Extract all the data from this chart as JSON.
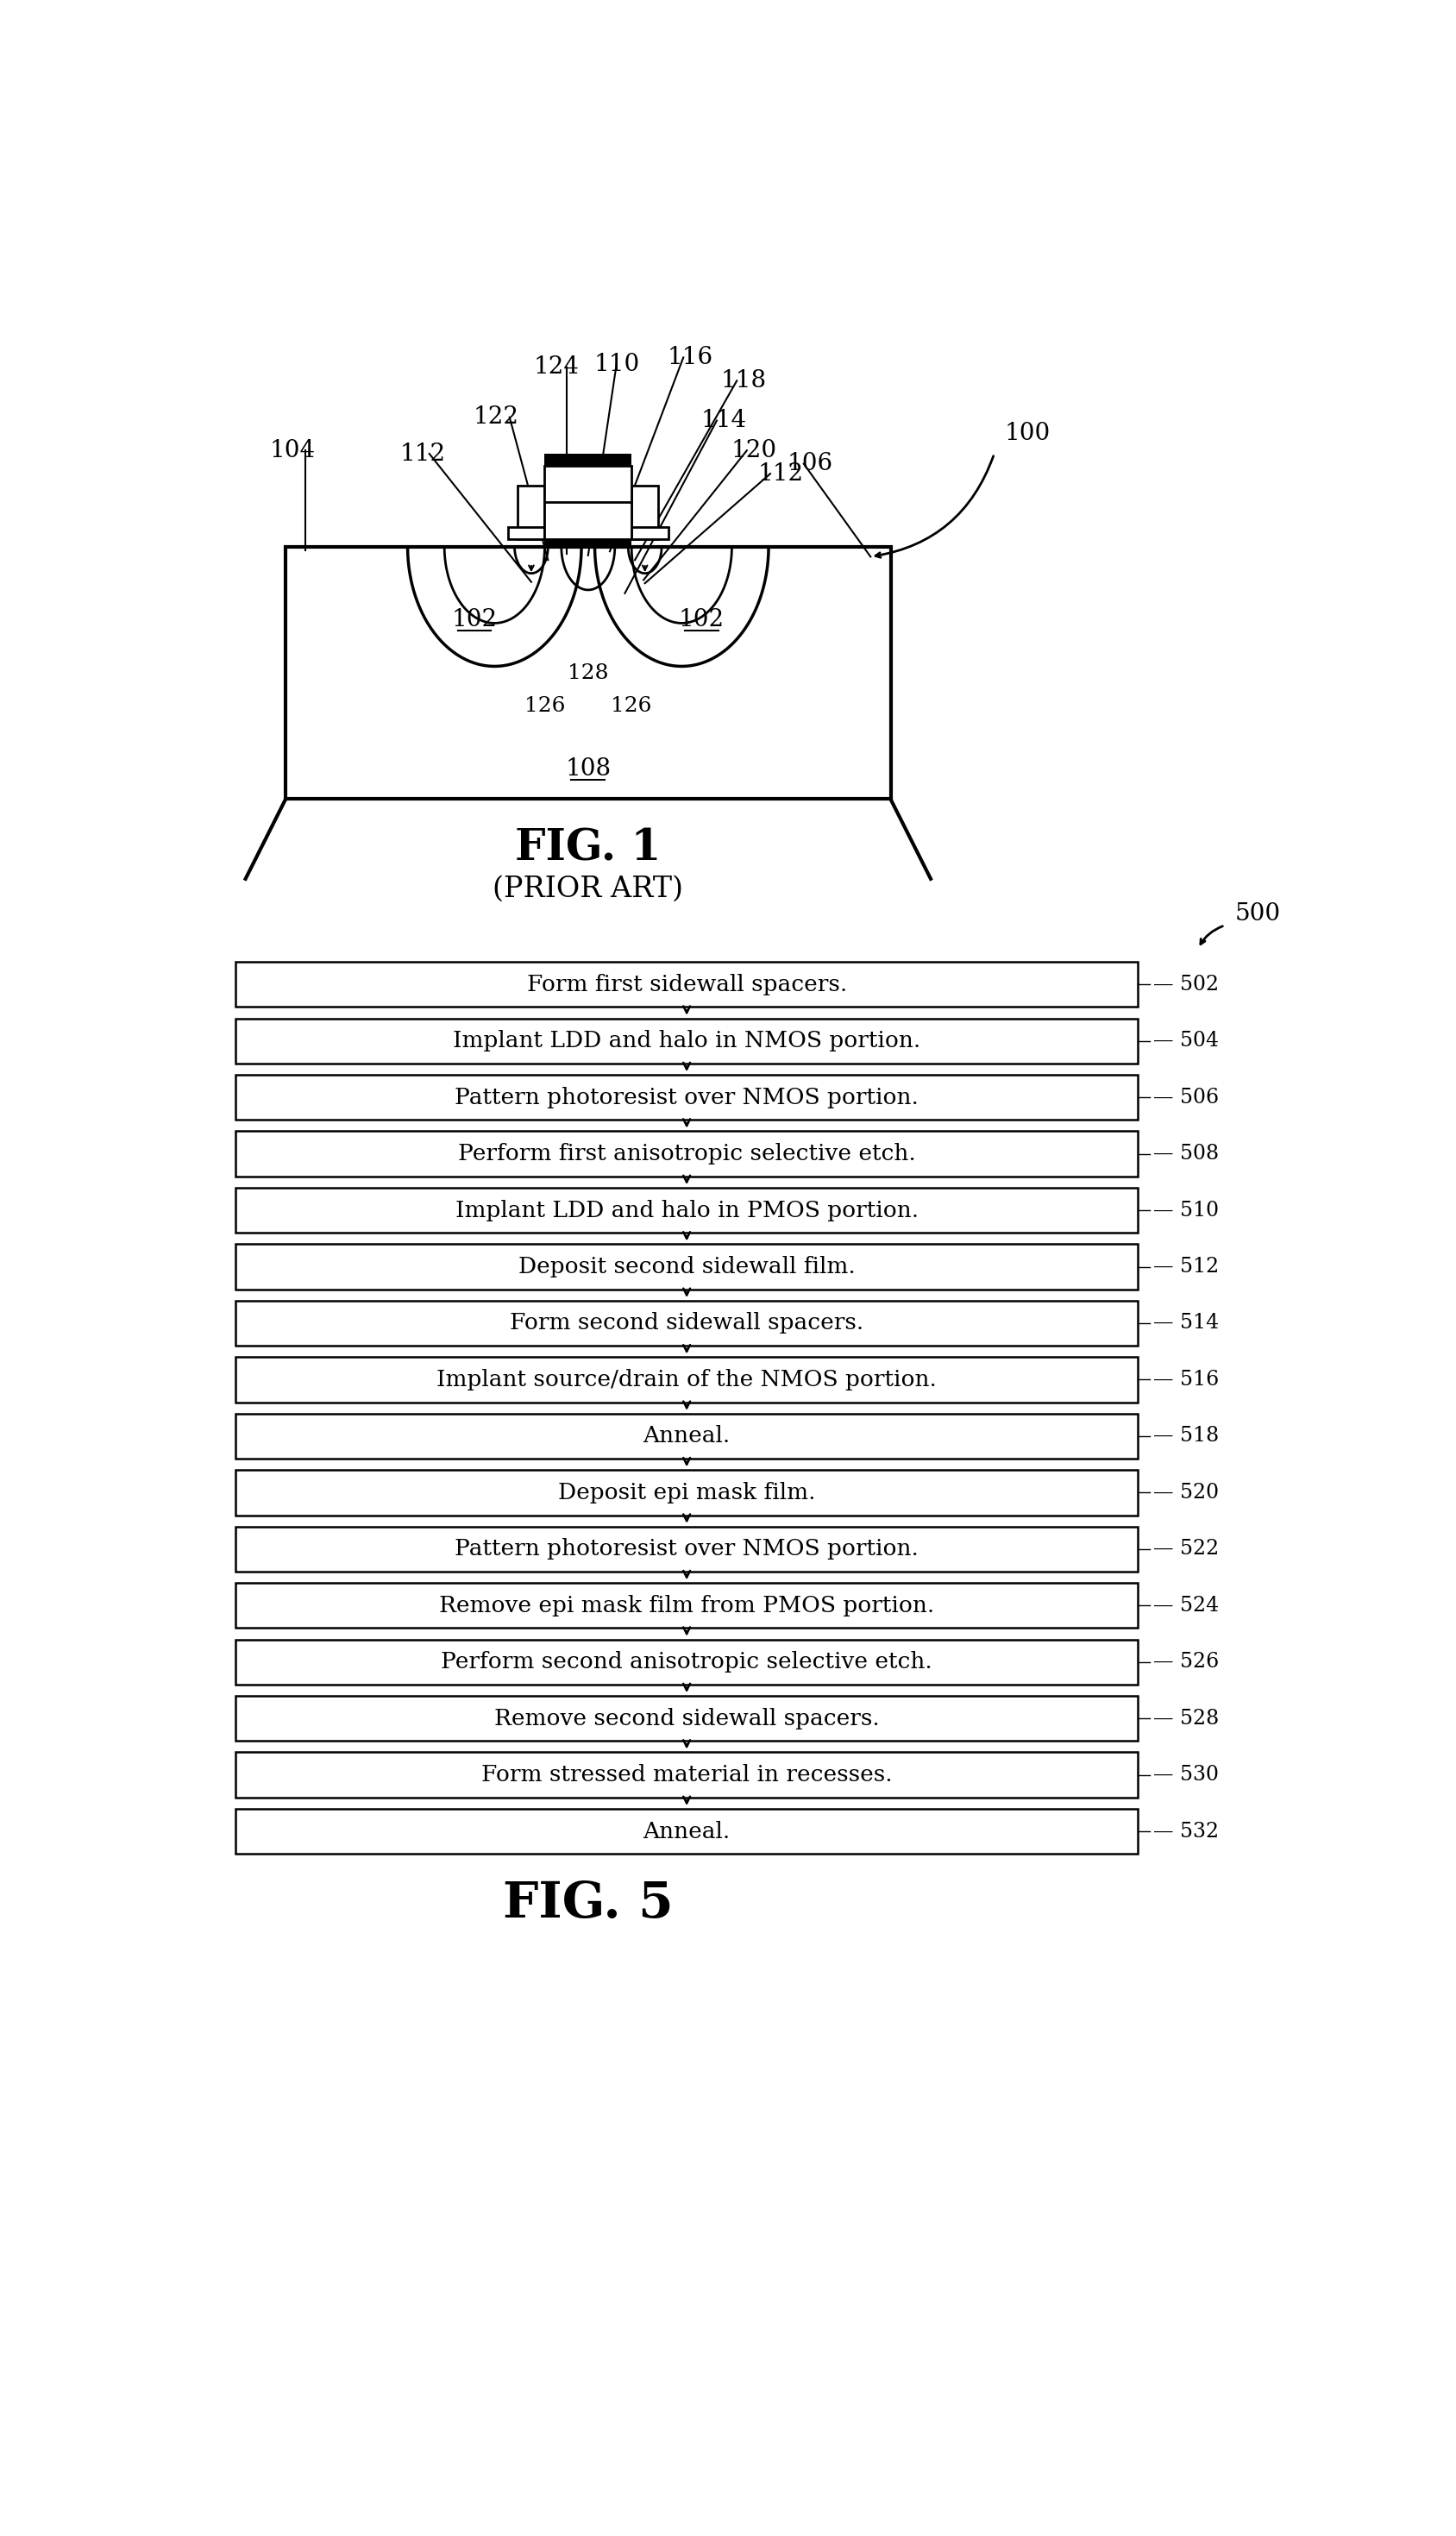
{
  "fig_title_top": "FIG. 1",
  "fig_subtitle_top": "(PRIOR ART)",
  "fig_title_bottom": "FIG. 5",
  "steps": [
    {
      "text": "Form first sidewall spacers.",
      "label": "502"
    },
    {
      "text": "Implant LDD and halo in NMOS portion.",
      "label": "504"
    },
    {
      "text": "Pattern photoresist over NMOS portion.",
      "label": "506"
    },
    {
      "text": "Perform first anisotropic selective etch.",
      "label": "508"
    },
    {
      "text": "Implant LDD and halo in PMOS portion.",
      "label": "510"
    },
    {
      "text": "Deposit second sidewall film.",
      "label": "512"
    },
    {
      "text": "Form second sidewall spacers.",
      "label": "514"
    },
    {
      "text": "Implant source/drain of the NMOS portion.",
      "label": "516"
    },
    {
      "text": "Anneal.",
      "label": "518"
    },
    {
      "text": "Deposit epi mask film.",
      "label": "520"
    },
    {
      "text": "Pattern photoresist over NMOS portion.",
      "label": "522"
    },
    {
      "text": "Remove epi mask film from PMOS portion.",
      "label": "524"
    },
    {
      "text": "Perform second anisotropic selective etch.",
      "label": "526"
    },
    {
      "text": "Remove second sidewall spacers.",
      "label": "528"
    },
    {
      "text": "Form stressed material in recesses.",
      "label": "530"
    },
    {
      "text": "Anneal.",
      "label": "532"
    }
  ],
  "bg_color": "#ffffff",
  "box_color": "#ffffff",
  "box_edge_color": "#000000",
  "text_color": "#000000",
  "arrow_color": "#000000",
  "diagram_ref": "100",
  "flowchart_ref": "500"
}
